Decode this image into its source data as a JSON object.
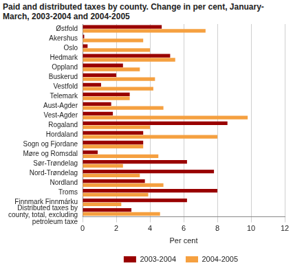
{
  "chart_data": {
    "type": "bar",
    "orientation": "horizontal",
    "title": "Paid and distributed taxes by county. Change in per cent, January-March, 2003-2004 and 2004-2005",
    "x_label": "Per cent",
    "categories": [
      "Østfold",
      "Akershus",
      "Oslo",
      "Hedmark",
      "Oppland",
      "Buskerud",
      "Vestfold",
      "Telemark",
      "Aust-Agder",
      "Vest-Agder",
      "Rogaland",
      "Hordaland",
      "Sogn og Fjordane",
      "Møre og Romsdal",
      "Sør-Trøndelag",
      "Nord-Trøndelag",
      "Nordland",
      "Troms",
      "Finnmark Finnmárku",
      "Distributed taxes by county, total, excluding petroleum taxe"
    ],
    "series": [
      {
        "name": "2003-2004",
        "color": "#990000",
        "values": [
          4.7,
          0.1,
          0.3,
          5.2,
          2.4,
          2.0,
          1.1,
          2.8,
          1.7,
          1.8,
          8.6,
          3.6,
          3.6,
          0.9,
          6.2,
          7.8,
          3.7,
          8.0,
          6.2,
          2.9
        ]
      },
      {
        "name": "2004-2005",
        "color": "#f5a040",
        "values": [
          7.3,
          3.6,
          4.0,
          5.5,
          3.4,
          4.3,
          4.2,
          2.8,
          4.8,
          9.8,
          4.0,
          8.0,
          3.6,
          4.5,
          2.4,
          3.4,
          4.8,
          3.9,
          2.3,
          4.6
        ]
      }
    ],
    "xlim": [
      0,
      12
    ],
    "xticks": [
      0,
      2,
      4,
      6,
      8,
      10,
      12
    ],
    "grid": true,
    "legend": "bottom"
  }
}
